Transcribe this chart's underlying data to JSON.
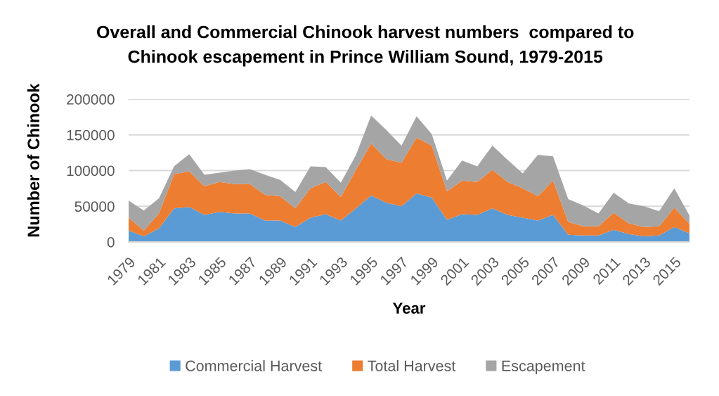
{
  "chart_data": {
    "type": "area",
    "title": "Overall and Commercial Chinook harvest numbers  compared to\nChinook escapement in Prince William Sound, 1979-2015",
    "xlabel": "Year",
    "ylabel": "Number of Chinook",
    "categories": [
      "1979",
      null,
      "1981",
      null,
      "1983",
      null,
      "1985",
      null,
      "1987",
      null,
      "1989",
      null,
      "1991",
      null,
      "1993",
      null,
      "1995",
      null,
      "1997",
      null,
      "1999",
      null,
      "2001",
      null,
      "2003",
      null,
      "2005",
      null,
      "2007",
      null,
      "2009",
      null,
      "2011",
      null,
      "2013",
      null,
      "2015",
      null
    ],
    "stacked": true,
    "series": [
      {
        "name": "Commercial Harvest",
        "color": "#5b9bd5",
        "values": [
          16000,
          8000,
          19000,
          47000,
          49000,
          38000,
          42000,
          40000,
          40000,
          30000,
          30000,
          21000,
          34000,
          39000,
          30000,
          47000,
          65000,
          55000,
          50000,
          68000,
          62000,
          31000,
          39000,
          38000,
          47000,
          38000,
          34000,
          30000,
          38000,
          10000,
          9000,
          9000,
          17000,
          11000,
          8000,
          9000,
          21000,
          12000
        ]
      },
      {
        "name": "Total Harvest",
        "color": "#ed7d31",
        "values": [
          18000,
          8000,
          21000,
          48000,
          50000,
          40000,
          42000,
          41000,
          41000,
          36000,
          34000,
          26000,
          41000,
          45000,
          33000,
          54000,
          73000,
          61000,
          61000,
          78000,
          73000,
          40000,
          47000,
          46000,
          54000,
          46000,
          41000,
          34000,
          48000,
          18000,
          13000,
          13000,
          24000,
          15000,
          13000,
          13000,
          27000,
          13000
        ]
      },
      {
        "name": "Escapement",
        "color": "#a5a5a5",
        "values": [
          24000,
          28000,
          21000,
          11000,
          24000,
          16000,
          13000,
          19000,
          21000,
          28000,
          23000,
          23000,
          31000,
          21000,
          20000,
          21000,
          39000,
          41000,
          24000,
          30000,
          16000,
          15000,
          28000,
          22000,
          34000,
          31000,
          21000,
          58000,
          34000,
          32000,
          29000,
          18000,
          28000,
          28000,
          29000,
          21000,
          27000,
          12000
        ]
      }
    ],
    "ylim": [
      0,
      200000
    ],
    "yticks": [
      0,
      50000,
      100000,
      150000,
      200000
    ],
    "grid": "y",
    "legend": "bottom"
  }
}
